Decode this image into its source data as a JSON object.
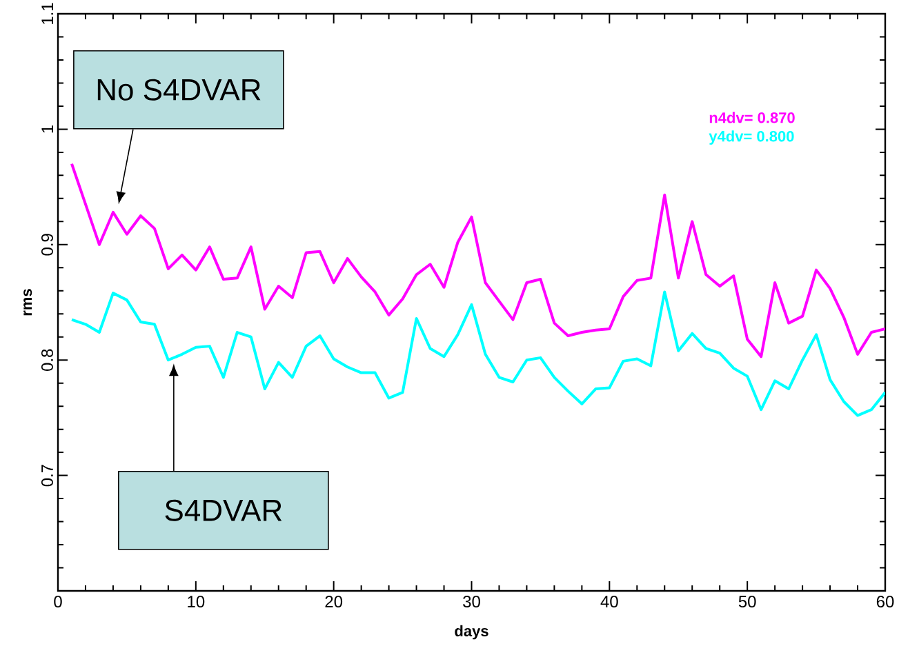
{
  "chart_data": {
    "type": "line",
    "xlabel": "days",
    "ylabel": "rms",
    "x": [
      1,
      2,
      3,
      4,
      5,
      6,
      7,
      8,
      9,
      10,
      11,
      12,
      13,
      14,
      15,
      16,
      17,
      18,
      19,
      20,
      21,
      22,
      23,
      24,
      25,
      26,
      27,
      28,
      29,
      30,
      31,
      32,
      33,
      34,
      35,
      36,
      37,
      38,
      39,
      40,
      41,
      42,
      43,
      44,
      45,
      46,
      47,
      48,
      49,
      50,
      51,
      52,
      53,
      54,
      55,
      56,
      57,
      58,
      59,
      60
    ],
    "series": [
      {
        "name": "n4dv=   0.870",
        "color": "#ff00ff",
        "values": [
          0.97,
          0.935,
          0.9,
          0.928,
          0.909,
          0.925,
          0.914,
          0.879,
          0.891,
          0.878,
          0.898,
          0.87,
          0.871,
          0.898,
          0.844,
          0.864,
          0.854,
          0.893,
          0.894,
          0.867,
          0.888,
          0.872,
          0.859,
          0.839,
          0.853,
          0.874,
          0.883,
          0.863,
          0.902,
          0.924,
          0.867,
          0.851,
          0.835,
          0.867,
          0.87,
          0.832,
          0.821,
          0.824,
          0.826,
          0.827,
          0.855,
          0.869,
          0.871,
          0.943,
          0.871,
          0.92,
          0.874,
          0.864,
          0.873,
          0.818,
          0.803,
          0.867,
          0.832,
          0.838,
          0.878,
          0.862,
          0.837,
          0.805,
          0.824,
          0.827
        ]
      },
      {
        "name": "y4dv=   0.800",
        "color": "#00ffff",
        "values": [
          0.835,
          0.831,
          0.824,
          0.858,
          0.852,
          0.833,
          0.831,
          0.8,
          0.805,
          0.811,
          0.812,
          0.785,
          0.824,
          0.82,
          0.775,
          0.798,
          0.785,
          0.812,
          0.821,
          0.801,
          0.794,
          0.789,
          0.789,
          0.767,
          0.772,
          0.836,
          0.81,
          0.803,
          0.822,
          0.848,
          0.805,
          0.785,
          0.781,
          0.8,
          0.802,
          0.785,
          0.773,
          0.762,
          0.775,
          0.776,
          0.799,
          0.801,
          0.795,
          0.859,
          0.808,
          0.823,
          0.81,
          0.806,
          0.793,
          0.786,
          0.757,
          0.782,
          0.775,
          0.8,
          0.822,
          0.783,
          0.764,
          0.752,
          0.757,
          0.772
        ]
      }
    ],
    "xlim": [
      0,
      60
    ],
    "ylim": [
      0.6,
      1.1
    ],
    "xticks": [
      0,
      10,
      20,
      30,
      40,
      50,
      60
    ],
    "yticks": [
      {
        "value": 0.6,
        "label": null
      },
      0.7,
      0.8,
      0.9,
      1,
      1.1
    ],
    "legend": "top right",
    "annotations": [
      "No S4DVAR",
      "S4DVAR"
    ]
  }
}
